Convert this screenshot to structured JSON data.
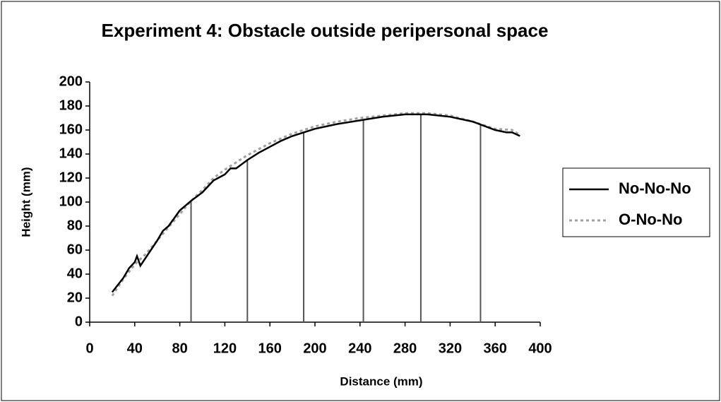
{
  "chart_data": {
    "type": "line",
    "title": "Experiment 4: Obstacle outside peripersonal space",
    "xlabel": "Distance (mm)",
    "ylabel": "Height (mm)",
    "xlim": [
      0,
      400
    ],
    "xticks": [
      0,
      40,
      80,
      120,
      160,
      200,
      240,
      280,
      320,
      360,
      400
    ],
    "ylim": [
      0,
      200
    ],
    "yticks": [
      0,
      20,
      40,
      60,
      80,
      100,
      120,
      140,
      160,
      180,
      200
    ],
    "legend": "right",
    "drop_lines_x": [
      90,
      140,
      190,
      243,
      294,
      347
    ],
    "series": [
      {
        "name": "No-No-No",
        "color": "#000000",
        "dash": false,
        "x": [
          20,
          30,
          35,
          40,
          42,
          45,
          50,
          60,
          65,
          70,
          80,
          90,
          100,
          110,
          120,
          125,
          130,
          140,
          150,
          160,
          170,
          180,
          190,
          200,
          220,
          240,
          260,
          280,
          300,
          320,
          340,
          360,
          370,
          375,
          382
        ],
        "values": [
          25,
          37,
          45,
          50,
          55,
          47,
          54,
          68,
          76,
          80,
          93,
          101,
          108,
          118,
          123,
          128,
          128,
          135,
          141,
          146,
          151,
          155,
          158,
          161,
          165,
          168,
          171,
          173,
          173,
          171,
          167,
          160,
          158,
          158,
          155
        ]
      },
      {
        "name": "O-No-No",
        "color": "#a0a0a0",
        "dash": true,
        "x": [
          20,
          30,
          40,
          50,
          60,
          70,
          80,
          90,
          100,
          110,
          120,
          140,
          160,
          180,
          200,
          220,
          240,
          260,
          280,
          300,
          320,
          340,
          360,
          375,
          382
        ],
        "values": [
          22,
          36,
          48,
          57,
          68,
          79,
          90,
          101,
          110,
          120,
          127,
          139,
          149,
          157,
          163,
          167,
          170,
          172,
          174,
          174,
          172,
          167,
          161,
          160,
          156
        ]
      }
    ]
  }
}
